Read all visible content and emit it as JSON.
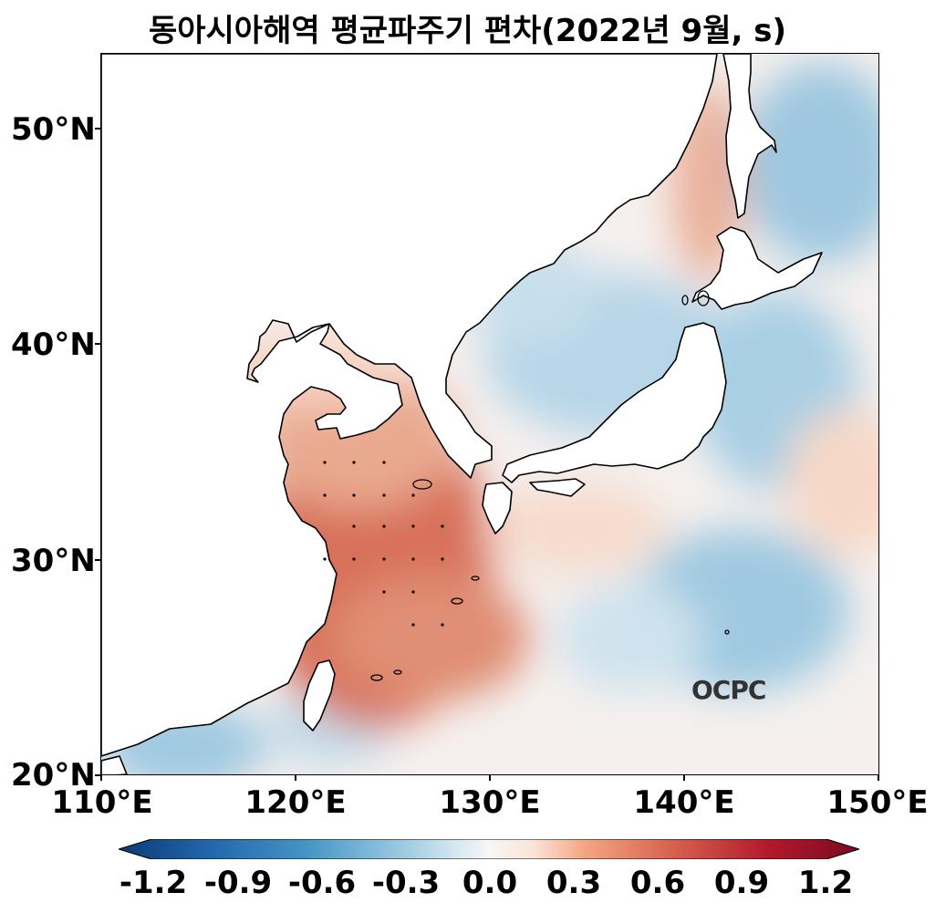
{
  "title": "동아시아해역 평균파주기 편차(2022년 9월, s)",
  "logo": "OCPC",
  "axes": {
    "lat_labels": [
      "50°N",
      "40°N",
      "30°N",
      "20°N"
    ],
    "lon_labels": [
      "110°E",
      "120°E",
      "130°E",
      "140°E",
      "150°E"
    ]
  },
  "colorbar": {
    "labels": [
      "-1.2",
      "-0.9",
      "-0.6",
      "-0.3",
      "0.0",
      "0.3",
      "0.6",
      "0.9",
      "1.2"
    ],
    "colormap": "RdBu_r",
    "colors": [
      "#08306b",
      "#2166ac",
      "#4393c3",
      "#92c5de",
      "#d1e5f0",
      "#f7f7f7",
      "#fddbc7",
      "#f4a582",
      "#d6604d",
      "#b2182b",
      "#67001f"
    ]
  },
  "map": {
    "extent_lon": [
      110,
      150
    ],
    "extent_lat": [
      20,
      53.5
    ],
    "land_color": "#ffffff",
    "positive_anomaly_color": "#d6604d",
    "negative_anomaly_color": "#92c5de"
  }
}
